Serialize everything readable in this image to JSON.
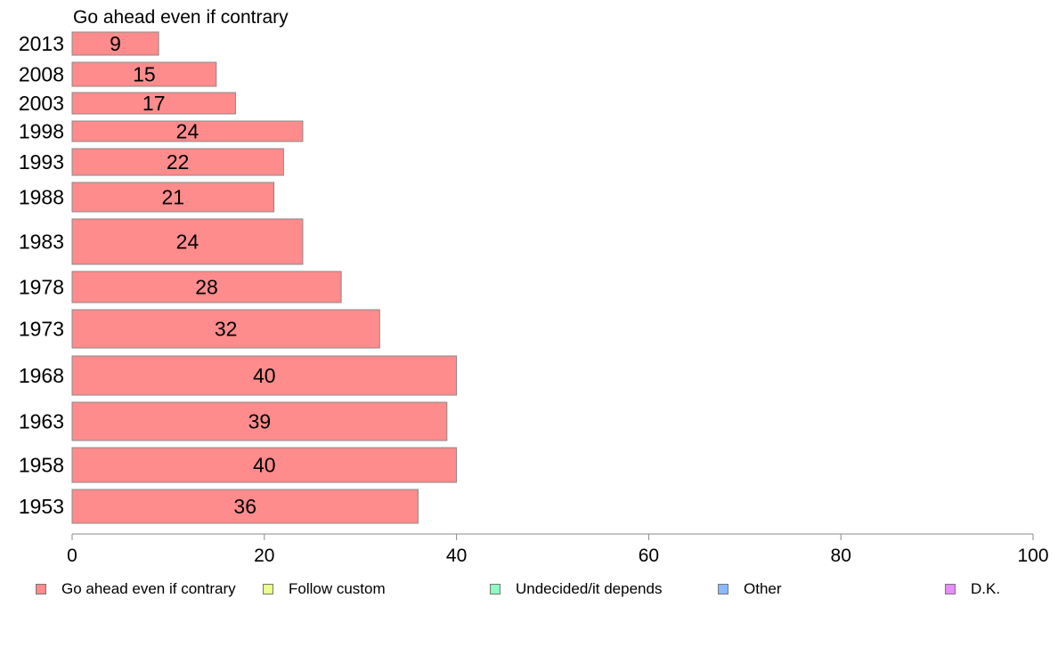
{
  "chart_data": {
    "type": "bar",
    "orientation": "horizontal",
    "title": "Go ahead even if contrary",
    "categories": [
      "2013",
      "2008",
      "2003",
      "1998",
      "1993",
      "1988",
      "1983",
      "1978",
      "1973",
      "1968",
      "1963",
      "1958",
      "1953"
    ],
    "series": [
      {
        "name": "Go ahead even if contrary",
        "color": "#ff8c8c",
        "values": [
          9,
          15,
          17,
          24,
          22,
          21,
          24,
          28,
          32,
          40,
          39,
          40,
          36
        ],
        "labels": [
          "9",
          "15",
          "17",
          "24",
          "22",
          "21",
          "24",
          "28",
          "32",
          "40",
          "39",
          "40",
          "36"
        ]
      }
    ],
    "xlim": [
      0,
      100
    ],
    "xticks": [
      "0",
      "20",
      "40",
      "60",
      "80",
      "100"
    ],
    "grid": false,
    "legend_position": "bottom"
  },
  "legend": [
    {
      "label": "Go ahead even if contrary",
      "color": "#ff8c8c"
    },
    {
      "label": "Follow custom",
      "color": "#ecff8c"
    },
    {
      "label": "Undecided/it depends",
      "color": "#8cffc0"
    },
    {
      "label": "Other",
      "color": "#8cb8ff"
    },
    {
      "label": "D.K.",
      "color": "#e88cff"
    }
  ]
}
